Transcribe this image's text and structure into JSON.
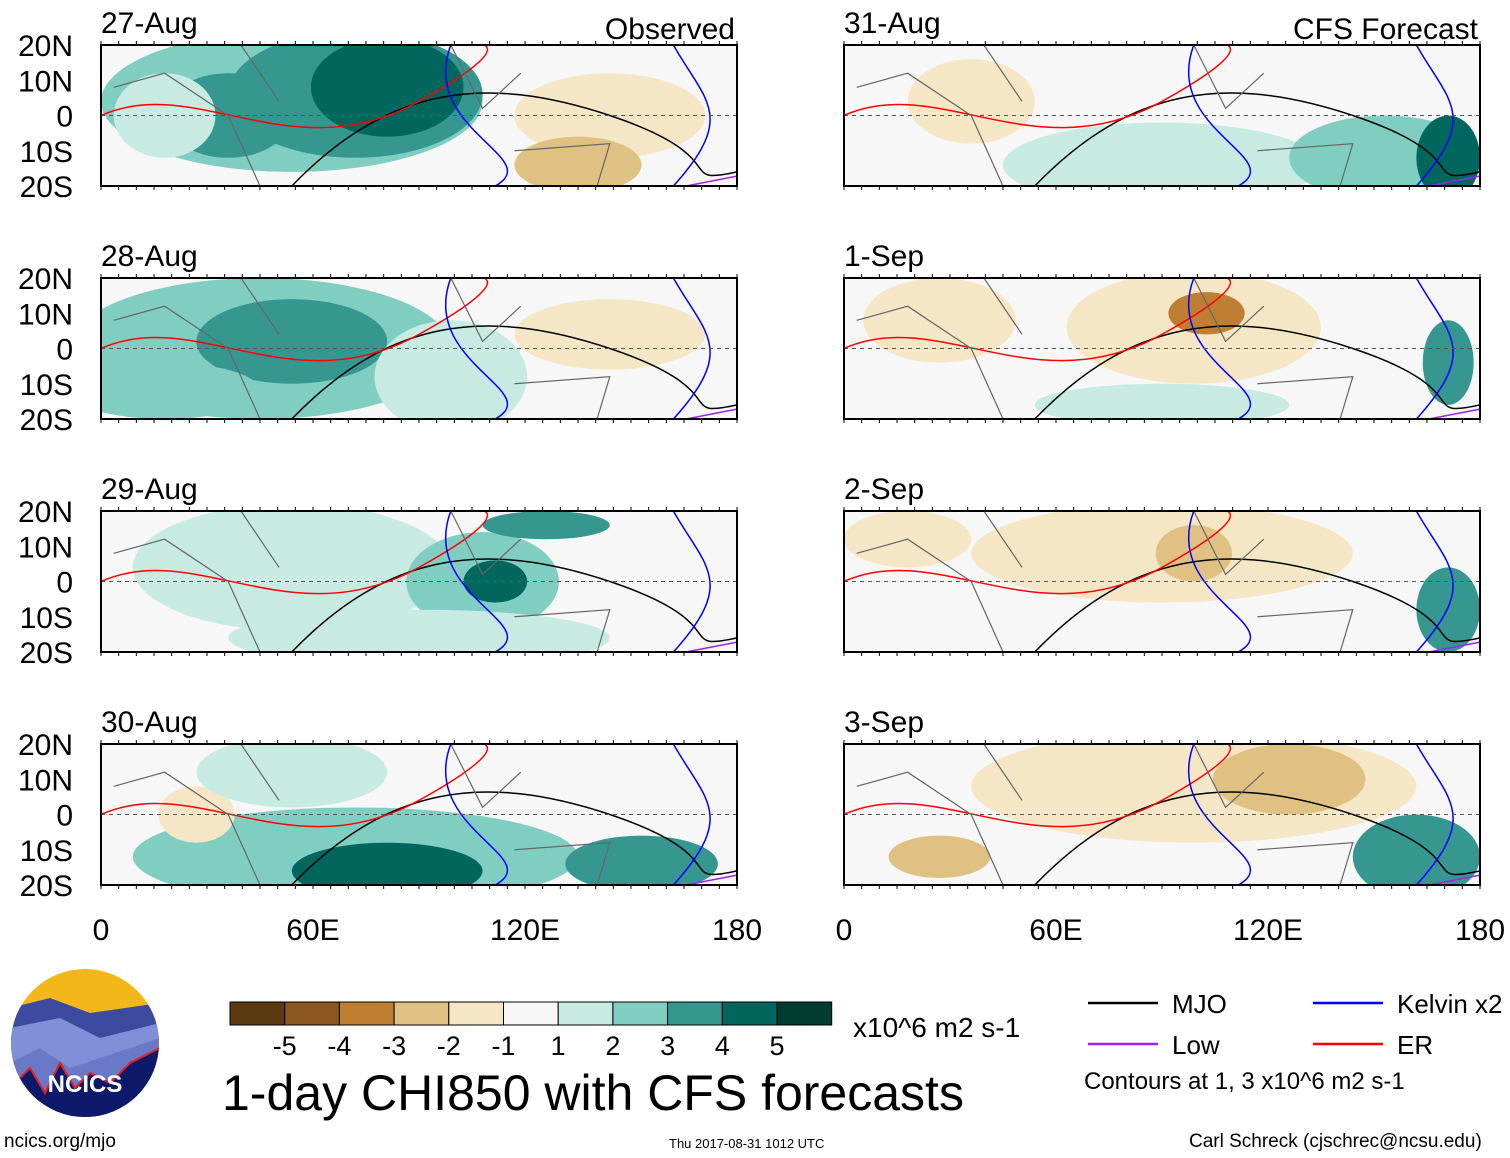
{
  "chart_data": {
    "type": "heatmap",
    "title": "1-day CHI850 with CFS forecasts",
    "units": "x10^6 m2 s-1",
    "column_titles": [
      "Observed",
      "CFS Forecast"
    ],
    "lat_ticks": [
      "20N",
      "10N",
      "0",
      "10S",
      "20S"
    ],
    "lon_ticks": [
      "0",
      "60E",
      "120E",
      "180"
    ],
    "lon_range": [
      0,
      180
    ],
    "lat_range": [
      -20,
      20
    ],
    "panels": [
      {
        "date": "27-Aug",
        "source": "Observed"
      },
      {
        "date": "28-Aug",
        "source": "Observed"
      },
      {
        "date": "29-Aug",
        "source": "Observed"
      },
      {
        "date": "30-Aug",
        "source": "Observed"
      },
      {
        "date": "31-Aug",
        "source": "CFS Forecast"
      },
      {
        "date": "1-Sep",
        "source": "CFS Forecast"
      },
      {
        "date": "2-Sep",
        "source": "CFS Forecast"
      },
      {
        "date": "3-Sep",
        "source": "CFS Forecast"
      }
    ],
    "colorbar": {
      "labels": [
        "-5",
        "-4",
        "-3",
        "-2",
        "-1",
        "1",
        "2",
        "3",
        "4",
        "5"
      ],
      "colors": [
        "#5a3a10",
        "#8b5620",
        "#bf7f32",
        "#dfc283",
        "#f5e7c6",
        "#f7f7f7",
        "#c7eae3",
        "#80cdc1",
        "#35978f",
        "#01665e",
        "#003c30"
      ]
    },
    "legend": [
      {
        "label": "MJO",
        "color": "#000000"
      },
      {
        "label": "Kelvin x2",
        "color": "#0000ff"
      },
      {
        "label": "Low",
        "color": "#a020f0"
      },
      {
        "label": "ER",
        "color": "#ff0000"
      }
    ],
    "contour_note": "Contours at 1, 3 x10^6 m2 s-1"
  },
  "logo": {
    "text": "NCICS"
  },
  "footer": {
    "url": "ncics.org/mjo",
    "timestamp": "Thu 2017-08-31 1012 UTC",
    "author": "Carl Schreck (cjschrec@ncsu.edu)"
  }
}
